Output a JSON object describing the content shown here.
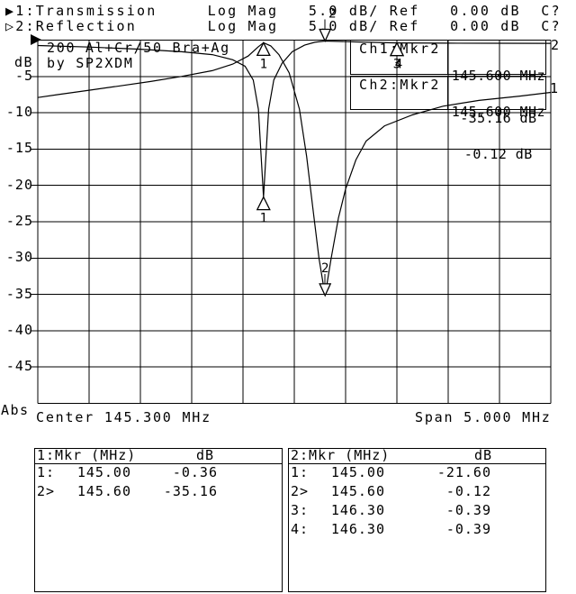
{
  "header": {
    "lines": [
      {
        "arrow": "▶",
        "text": "1:Transmission     Log Mag   5.0 dB/ Ref   0.00 dB  C?"
      },
      {
        "arrow": "▷",
        "text": "2:Reflection       Log Mag   5.0 dB/ Ref   0.00 dB  C?"
      }
    ]
  },
  "graph": {
    "y_unit_label": "dB",
    "y_bottom_label": "Abs",
    "yticks": [
      "-5",
      "-10",
      "-15",
      "-20",
      "-25",
      "-30",
      "-35",
      "-40",
      "-45"
    ],
    "x_left_label": "Center 145.300 MHz",
    "x_right_label": "Span 5.000 MHz",
    "annotation": {
      "line1": "200 Al+Cr/50 Bra+Ag",
      "line2": "by SP2XDM"
    },
    "ch1_readout": {
      "label": "Ch1:Mkr2",
      "freq": "145.600 MHz",
      "value": "-35.16 dB"
    },
    "ch2_readout": {
      "label": "Ch2:Mkr2",
      "freq": "145.600 MHz",
      "value": "-0.12 dB"
    },
    "trace_end_labels": {
      "reflection": "2",
      "transmission": "1"
    }
  },
  "tables": [
    {
      "header_left": "1:Mkr (MHz)",
      "header_right": "dB",
      "rows": [
        [
          "1:",
          "145.00",
          "-0.36"
        ],
        [
          "2>",
          "145.60",
          "-35.16"
        ]
      ]
    },
    {
      "header_left": "2:Mkr (MHz)",
      "header_right": "dB",
      "rows": [
        [
          "1:",
          "145.00",
          "-21.60"
        ],
        [
          "2>",
          "145.60",
          "-0.12"
        ],
        [
          "3:",
          "146.30",
          "-0.39"
        ],
        [
          "4:",
          "146.30",
          "-0.39"
        ]
      ]
    }
  ],
  "chart_data": {
    "type": "line",
    "title": "200 Al+Cr/50 Bra+Ag by SP2XDM",
    "x_unit": "MHz",
    "x_range": [
      142.8,
      147.8
    ],
    "center_mhz": 145.3,
    "span_mhz": 5.0,
    "y_unit": "dB",
    "y_range": [
      0,
      -50
    ],
    "y_ticks_db": [
      -5,
      -10,
      -15,
      -20,
      -25,
      -30,
      -35,
      -40,
      -45
    ],
    "scale_per_div_db": 5.0,
    "ref_db": 0.0,
    "grid": "on",
    "series": [
      {
        "name": "Transmission",
        "points": [
          [
            142.8,
            -7.9
          ],
          [
            143.0,
            -7.5
          ],
          [
            143.3,
            -6.9
          ],
          [
            143.6,
            -6.3
          ],
          [
            143.9,
            -5.7
          ],
          [
            144.2,
            -5.0
          ],
          [
            144.5,
            -4.2
          ],
          [
            144.7,
            -3.3
          ],
          [
            144.85,
            -2.2
          ],
          [
            144.95,
            -0.9
          ],
          [
            145.0,
            -0.36
          ],
          [
            145.07,
            -0.8
          ],
          [
            145.15,
            -2.0
          ],
          [
            145.25,
            -4.5
          ],
          [
            145.35,
            -9.5
          ],
          [
            145.42,
            -16.0
          ],
          [
            145.48,
            -23.0
          ],
          [
            145.54,
            -30.0
          ],
          [
            145.6,
            -35.16
          ],
          [
            145.66,
            -30.0
          ],
          [
            145.73,
            -24.5
          ],
          [
            145.8,
            -20.5
          ],
          [
            145.9,
            -16.5
          ],
          [
            146.0,
            -13.9
          ],
          [
            146.18,
            -11.8
          ],
          [
            146.45,
            -10.3
          ],
          [
            146.75,
            -9.1
          ],
          [
            147.1,
            -8.3
          ],
          [
            147.5,
            -7.7
          ],
          [
            147.8,
            -7.2
          ]
        ]
      },
      {
        "name": "Reflection",
        "points": [
          [
            142.8,
            -0.75
          ],
          [
            143.3,
            -0.95
          ],
          [
            143.8,
            -1.25
          ],
          [
            144.2,
            -1.6
          ],
          [
            144.5,
            -2.0
          ],
          [
            144.7,
            -2.7
          ],
          [
            144.82,
            -3.6
          ],
          [
            144.9,
            -5.5
          ],
          [
            144.95,
            -9.5
          ],
          [
            145.0,
            -21.6
          ],
          [
            145.05,
            -9.5
          ],
          [
            145.1,
            -5.5
          ],
          [
            145.18,
            -3.2
          ],
          [
            145.28,
            -1.6
          ],
          [
            145.4,
            -0.7
          ],
          [
            145.5,
            -0.3
          ],
          [
            145.6,
            -0.12
          ],
          [
            145.9,
            -0.25
          ],
          [
            146.3,
            -0.39
          ],
          [
            146.8,
            -0.42
          ],
          [
            147.3,
            -0.44
          ],
          [
            147.8,
            -0.45
          ]
        ]
      }
    ],
    "markers": [
      {
        "trace": 1,
        "trace_name": "Transmission",
        "label": "1",
        "mhz": 145.0,
        "db": -0.36,
        "glyph": "up"
      },
      {
        "trace": 2,
        "trace_name": "Reflection",
        "label": "1",
        "mhz": 145.0,
        "db": -21.6,
        "glyph": "up"
      },
      {
        "trace": 1,
        "trace_name": "Transmission",
        "label": "2",
        "mhz": 145.6,
        "db": -35.16,
        "glyph": "down"
      },
      {
        "trace": 2,
        "trace_name": "Reflection",
        "label": "2",
        "mhz": 145.6,
        "db": -0.12,
        "glyph": "down",
        "label_dx": 8
      },
      {
        "trace": 2,
        "trace_name": "Reflection",
        "label": "3",
        "mhz": 146.3,
        "db": -0.39,
        "glyph": "up"
      },
      {
        "trace": 2,
        "trace_name": "Reflection",
        "label": "4",
        "mhz": 146.3,
        "db": -0.39,
        "glyph": "up",
        "label_dx": 2
      }
    ]
  },
  "colors": {
    "foreground": "#000000",
    "background": "#ffffff"
  }
}
